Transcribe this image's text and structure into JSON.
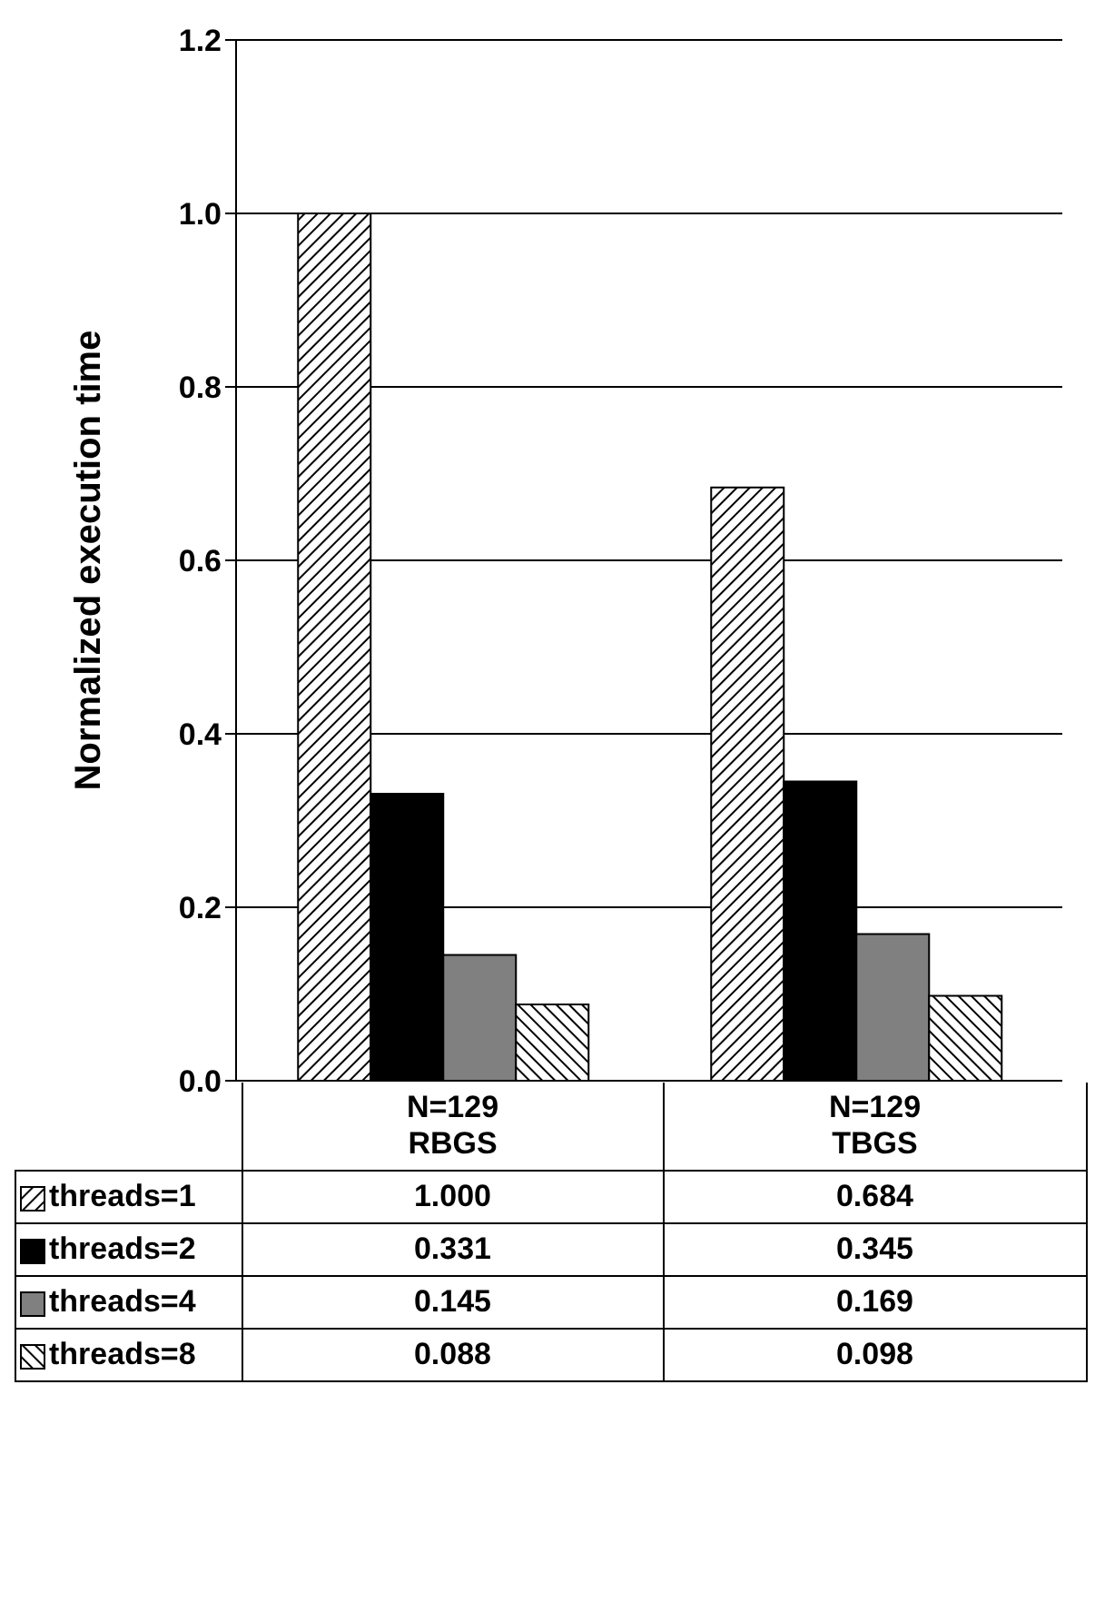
{
  "chart_data": {
    "type": "bar",
    "ylabel": "Normalized execution time",
    "categories": [
      "N=129 RBGS",
      "N=129 TBGS"
    ],
    "series": [
      {
        "name": "threads=1",
        "color": "#000000",
        "values": [
          1.0,
          0.684
        ],
        "value_labels": [
          "1.000",
          "0.684"
        ]
      },
      {
        "name": "threads=2",
        "color": "#000000",
        "values": [
          0.331,
          0.345
        ],
        "value_labels": [
          "0.331",
          "0.345"
        ]
      },
      {
        "name": "threads=4",
        "color": "#808080",
        "values": [
          0.145,
          0.169
        ],
        "value_labels": [
          "0.145",
          "0.169"
        ]
      },
      {
        "name": "threads=8",
        "color": "#000000",
        "values": [
          0.088,
          0.098
        ],
        "value_labels": [
          "0.088",
          "0.098"
        ]
      }
    ],
    "ylim": [
      0,
      1.2
    ],
    "yticks": [
      {
        "value": 0,
        "label": "0.0"
      },
      0.2,
      0.4,
      0.6,
      0.8,
      {
        "value": 1,
        "label": "1.0"
      },
      1.2
    ],
    "grid": "y",
    "legend": "bottom left"
  }
}
